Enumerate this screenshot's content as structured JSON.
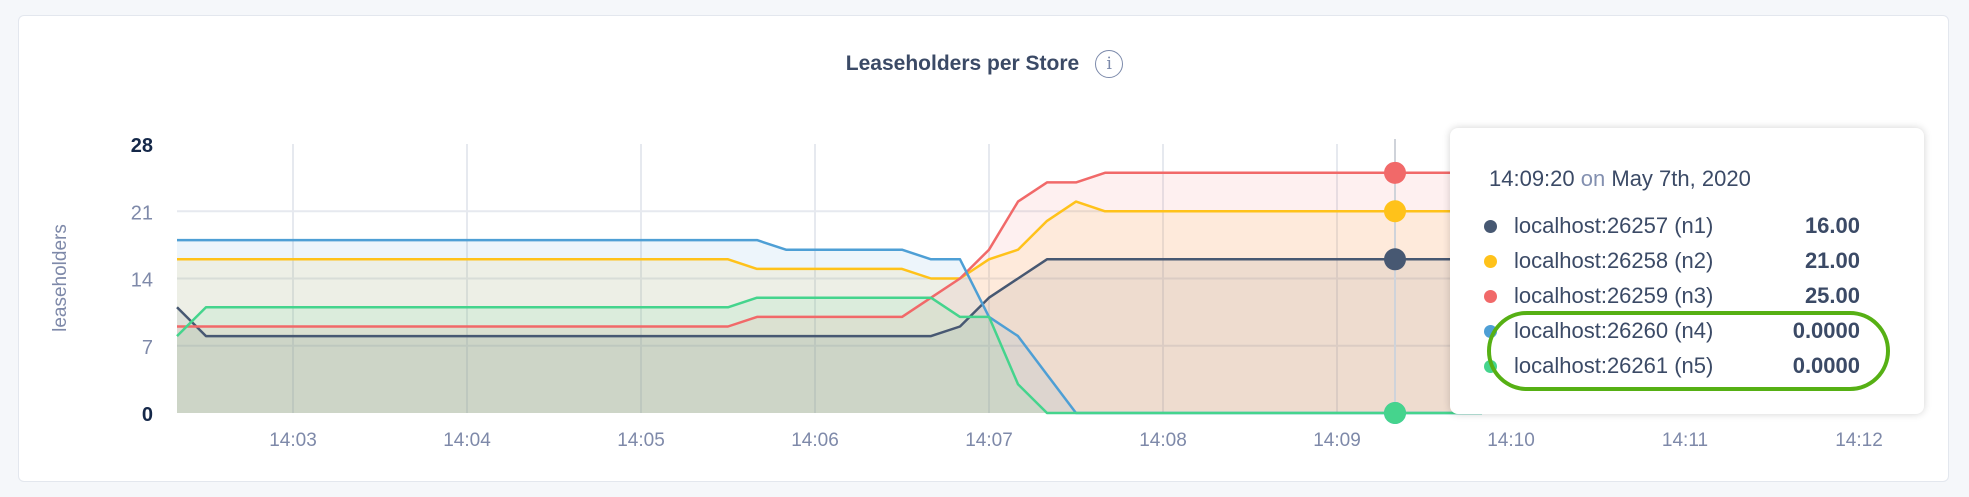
{
  "title": "Leaseholders per Store",
  "info_icon": "info-circle-icon",
  "chart_data": {
    "type": "area",
    "title": "Leaseholders per Store",
    "xlabel": "",
    "ylabel": "leaseholders",
    "ylim": [
      0,
      28
    ],
    "yticks": [
      "0",
      "7",
      "14",
      "21",
      "28"
    ],
    "xticks": [
      "14:03",
      "14:04",
      "14:05",
      "14:06",
      "14:07",
      "14:08",
      "14:09",
      "14:10",
      "14:11",
      "14:12"
    ],
    "grid": true,
    "x": [
      "14:02:20",
      "14:02:30",
      "14:02:40",
      "14:02:50",
      "14:03:00",
      "14:03:10",
      "14:03:20",
      "14:03:30",
      "14:03:40",
      "14:03:50",
      "14:04:00",
      "14:04:10",
      "14:04:20",
      "14:04:30",
      "14:04:40",
      "14:04:50",
      "14:05:00",
      "14:05:10",
      "14:05:20",
      "14:05:30",
      "14:05:40",
      "14:05:50",
      "14:06:00",
      "14:06:10",
      "14:06:20",
      "14:06:30",
      "14:06:40",
      "14:06:50",
      "14:07:00",
      "14:07:10",
      "14:07:20",
      "14:07:30",
      "14:07:40",
      "14:07:50",
      "14:08:00",
      "14:08:10",
      "14:08:20",
      "14:08:30",
      "14:08:40",
      "14:08:50",
      "14:09:00",
      "14:09:10",
      "14:09:20",
      "14:09:30",
      "14:09:40",
      "14:09:50"
    ],
    "series": [
      {
        "name": "localhost:26257 (n1)",
        "color": "#475872",
        "values": [
          11,
          8,
          8,
          8,
          8,
          8,
          8,
          8,
          8,
          8,
          8,
          8,
          8,
          8,
          8,
          8,
          8,
          8,
          8,
          8,
          8,
          8,
          8,
          8,
          8,
          8,
          8,
          9,
          12,
          14,
          16,
          16,
          16,
          16,
          16,
          16,
          16,
          16,
          16,
          16,
          16,
          16,
          16,
          16,
          16,
          16
        ]
      },
      {
        "name": "localhost:26258 (n2)",
        "color": "#ffc21a",
        "values": [
          16,
          16,
          16,
          16,
          16,
          16,
          16,
          16,
          16,
          16,
          16,
          16,
          16,
          16,
          16,
          16,
          16,
          16,
          16,
          16,
          15,
          15,
          15,
          15,
          15,
          15,
          14,
          14,
          16,
          17,
          20,
          22,
          21,
          21,
          21,
          21,
          21,
          21,
          21,
          21,
          21,
          21,
          21,
          21,
          21,
          21
        ]
      },
      {
        "name": "localhost:26259 (n3)",
        "color": "#f16969",
        "values": [
          9,
          9,
          9,
          9,
          9,
          9,
          9,
          9,
          9,
          9,
          9,
          9,
          9,
          9,
          9,
          9,
          9,
          9,
          9,
          9,
          10,
          10,
          10,
          10,
          10,
          10,
          12,
          14,
          17,
          22,
          24,
          24,
          25,
          25,
          25,
          25,
          25,
          25,
          25,
          25,
          25,
          25,
          25,
          25,
          25,
          25
        ]
      },
      {
        "name": "localhost:26260 (n4)",
        "color": "#4e9fd5",
        "values": [
          18,
          18,
          18,
          18,
          18,
          18,
          18,
          18,
          18,
          18,
          18,
          18,
          18,
          18,
          18,
          18,
          18,
          18,
          18,
          18,
          18,
          17,
          17,
          17,
          17,
          17,
          16,
          16,
          10,
          8,
          4,
          0,
          0,
          0,
          0,
          0,
          0,
          0,
          0,
          0,
          0,
          0,
          0,
          0,
          0,
          0
        ]
      },
      {
        "name": "localhost:26261 (n5)",
        "color": "#45d48d",
        "values": [
          8,
          11,
          11,
          11,
          11,
          11,
          11,
          11,
          11,
          11,
          11,
          11,
          11,
          11,
          11,
          11,
          11,
          11,
          11,
          11,
          12,
          12,
          12,
          12,
          12,
          12,
          12,
          10,
          10,
          3,
          0,
          0,
          0,
          0,
          0,
          0,
          0,
          0,
          0,
          0,
          0,
          0,
          0,
          0,
          0,
          0
        ]
      }
    ],
    "hover_x": "14:09:20"
  },
  "tooltip": {
    "time": "14:09:20",
    "on": "on",
    "date": "May 7th, 2020",
    "rows": [
      {
        "name": "localhost:26257 (n1)",
        "value": "16.00",
        "color": "#475872"
      },
      {
        "name": "localhost:26258 (n2)",
        "value": "21.00",
        "color": "#ffc21a"
      },
      {
        "name": "localhost:26259 (n3)",
        "value": "25.00",
        "color": "#f16969"
      },
      {
        "name": "localhost:26260 (n4)",
        "value": "0.0000",
        "color": "#4e9fd5"
      },
      {
        "name": "localhost:26261 (n5)",
        "value": "0.0000",
        "color": "#45d48d"
      }
    ],
    "highlight_color": "#56b014"
  }
}
